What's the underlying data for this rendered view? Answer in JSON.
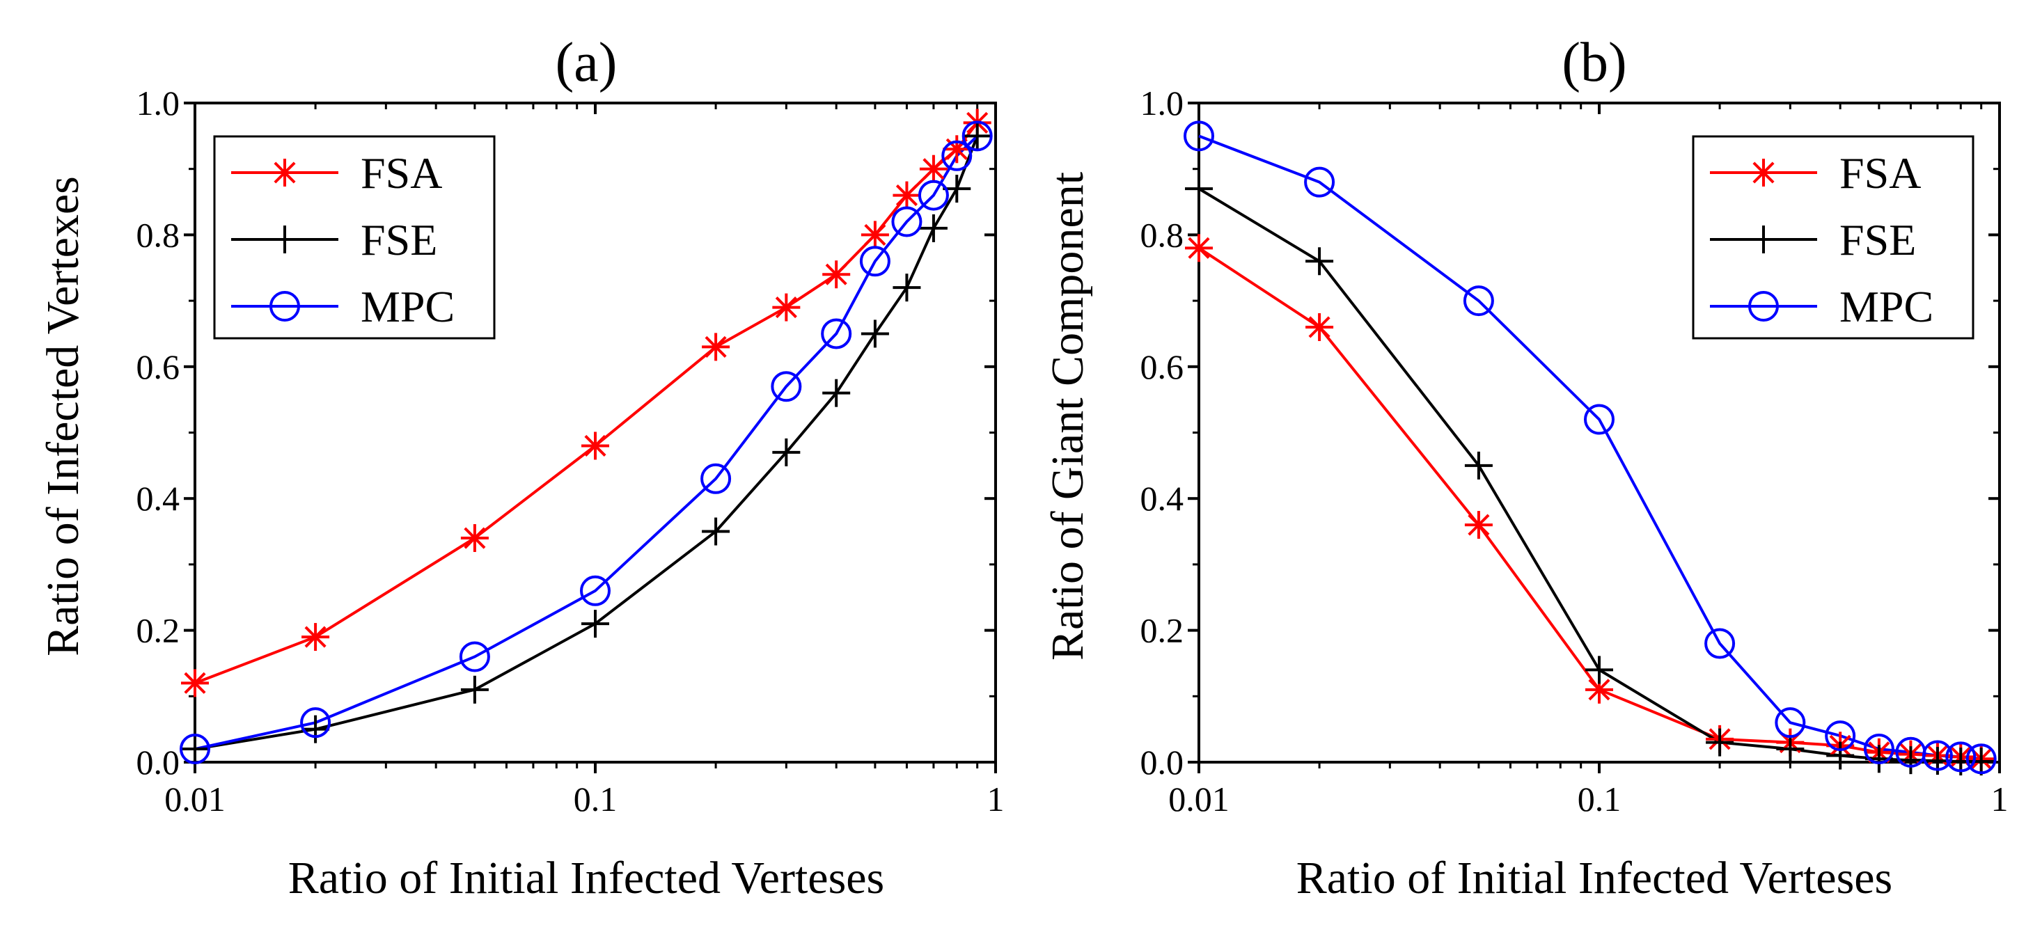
{
  "chart_data": [
    {
      "type": "line",
      "panel": "(a)",
      "title": "(a)",
      "xlabel": "Ratio of Initial Infected Verteses",
      "ylabel": "Ratio of Infected Vertexes",
      "xscale": "log",
      "xlim": [
        0.01,
        1
      ],
      "ylim": [
        0.0,
        1.0
      ],
      "xticks": [
        "0.01",
        "0.1",
        "1"
      ],
      "yticks": [
        "0.0",
        "0.2",
        "0.4",
        "0.6",
        "0.8",
        "1.0"
      ],
      "legend_position": "top-left",
      "x": [
        0.01,
        0.02,
        0.05,
        0.1,
        0.2,
        0.3,
        0.4,
        0.5,
        0.6,
        0.7,
        0.8,
        0.9
      ],
      "series": [
        {
          "name": "FSA",
          "color": "#ff0000",
          "marker": "asterisk",
          "values": [
            0.12,
            0.19,
            0.34,
            0.48,
            0.63,
            0.69,
            0.74,
            0.8,
            0.86,
            0.9,
            0.93,
            0.97
          ]
        },
        {
          "name": "FSE",
          "color": "#000000",
          "marker": "plus",
          "values": [
            0.02,
            0.05,
            0.11,
            0.21,
            0.35,
            0.47,
            0.56,
            0.65,
            0.72,
            0.81,
            0.87,
            0.95
          ]
        },
        {
          "name": "MPC",
          "color": "#0000ff",
          "marker": "circle",
          "values": [
            0.02,
            0.06,
            0.16,
            0.26,
            0.43,
            0.57,
            0.65,
            0.76,
            0.82,
            0.86,
            0.92,
            0.95
          ]
        }
      ]
    },
    {
      "type": "line",
      "panel": "(b)",
      "title": "(b)",
      "xlabel": "Ratio of Initial Infected Verteses",
      "ylabel": "Ratio of Giant Component",
      "xscale": "log",
      "xlim": [
        0.01,
        1
      ],
      "ylim": [
        0.0,
        1.0
      ],
      "xticks": [
        "0.01",
        "0.1",
        "1"
      ],
      "yticks": [
        "0.0",
        "0.2",
        "0.4",
        "0.6",
        "0.8",
        "1.0"
      ],
      "legend_position": "top-right",
      "x": [
        0.01,
        0.02,
        0.05,
        0.1,
        0.2,
        0.3,
        0.4,
        0.5,
        0.6,
        0.7,
        0.8,
        0.9
      ],
      "series": [
        {
          "name": "FSA",
          "color": "#ff0000",
          "marker": "asterisk",
          "values": [
            0.78,
            0.66,
            0.36,
            0.11,
            0.035,
            0.03,
            0.025,
            0.015,
            0.012,
            0.01,
            0.008,
            0.005
          ]
        },
        {
          "name": "FSE",
          "color": "#000000",
          "marker": "plus",
          "values": [
            0.87,
            0.76,
            0.45,
            0.14,
            0.03,
            0.02,
            0.01,
            0.005,
            0.003,
            0.002,
            0.001,
            0.001
          ]
        },
        {
          "name": "MPC",
          "color": "#0000ff",
          "marker": "circle",
          "values": [
            0.95,
            0.88,
            0.7,
            0.52,
            0.18,
            0.06,
            0.04,
            0.02,
            0.015,
            0.01,
            0.008,
            0.005
          ]
        }
      ]
    }
  ]
}
